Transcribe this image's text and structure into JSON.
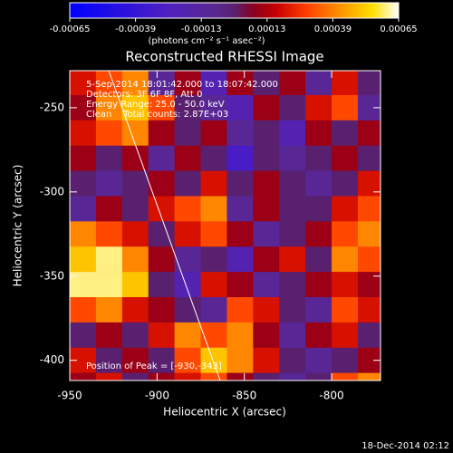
{
  "chart_data": {
    "type": "heatmap",
    "title": "Reconstructed RHESSI Image",
    "x_label": "Heliocentric X (arcsec)",
    "y_label": "Heliocentric Y (arcsec)",
    "annotations": [
      "5-Sep-2014 18:01:42.000 to 18:07:42.000",
      "Detectors: 3F 6F 8F, Att 0",
      "Energy Range: 25.0 - 50.0 keV",
      "Clean    Total counts: 2.87E+03",
      "Position of Peak = [-930,-343]"
    ],
    "footer": "18-Dec-2014 02:12",
    "colorbar": {
      "label": "(photons cm⁻² s⁻¹ asec⁻²)",
      "lim": [
        -0.00065,
        0.00065
      ],
      "ticks": [
        -0.00065,
        -0.00039,
        -0.00013,
        0.00013,
        0.00039,
        0.00065
      ]
    },
    "xlim": [
      -950,
      -772
    ],
    "ylim": [
      -412,
      -228
    ],
    "xticks": [
      -950,
      -900,
      -850,
      -800
    ],
    "yticks": [
      -250,
      -300,
      -350,
      -400
    ],
    "x": [
      -942.5,
      -927.5,
      -912.5,
      -897.5,
      -882.5,
      -867.5,
      -852.5,
      -837.5,
      -822.5,
      -807.5,
      -792.5,
      -777.5
    ],
    "y": [
      -235,
      -250,
      -265,
      -280,
      -295,
      -310,
      -325,
      -340,
      -355,
      -370,
      -385,
      -400,
      -415
    ],
    "z": [
      [
        0.0002,
        0.0003,
        0.0004,
        -0.0001,
        0.0001,
        -0.0002,
        0.0001,
        0,
        0.0001,
        -0.0001,
        0.0002,
        0
      ],
      [
        0.0001,
        0.0004,
        0.0005,
        0.0003,
        0,
        -0.0001,
        -0.0002,
        0.0001,
        0,
        0.0002,
        0.0003,
        -0.0001
      ],
      [
        0.0002,
        0.0003,
        0.0004,
        0.0001,
        0,
        0.0001,
        -0.0001,
        0,
        -0.0002,
        0.0001,
        0,
        0.0001
      ],
      [
        0.0001,
        0,
        0.0001,
        -0.0001,
        0.0001,
        0,
        -0.0003,
        0,
        -0.0001,
        0,
        0.0001,
        0
      ],
      [
        0,
        -0.0001,
        0,
        0.0001,
        0,
        0.0002,
        0,
        0.0001,
        0,
        -0.0001,
        0,
        0.0002
      ],
      [
        -0.0001,
        0.0001,
        0,
        0.0002,
        0.0003,
        0.0004,
        -0.0001,
        0.0001,
        0,
        0,
        0.0002,
        0.0003
      ],
      [
        0.0004,
        0.0003,
        0.0002,
        0,
        0.0002,
        0.0003,
        0.0001,
        -0.0001,
        0,
        0.0001,
        0.0003,
        0.0004
      ],
      [
        0.0005,
        0.0006,
        0.0004,
        0.0001,
        -0.0001,
        0,
        -0.0002,
        0.0001,
        0.0002,
        0,
        0.0004,
        0.0003
      ],
      [
        0.0006,
        0.0006,
        0.0005,
        0,
        -0.0002,
        0.0002,
        0.0001,
        -0.0001,
        0,
        0.0001,
        0.0002,
        0.0001
      ],
      [
        0.0003,
        0.0004,
        0.0002,
        0.0001,
        0,
        -0.0001,
        0.0003,
        0.0002,
        0,
        -0.0001,
        0.0003,
        0.0002
      ],
      [
        0,
        0.0001,
        0,
        0.0002,
        0.0004,
        0.0003,
        0.0004,
        0.0001,
        -0.0001,
        0.0001,
        0.0002,
        0
      ],
      [
        0.0002,
        0,
        0.0001,
        0,
        0.0003,
        0.0005,
        0.0004,
        0.0002,
        0,
        -0.0001,
        0,
        0.0001
      ],
      [
        0.0001,
        0.0002,
        0,
        0.0001,
        0.0002,
        0.0003,
        0.0001,
        0,
        -0.0001,
        0,
        0.0003,
        0.0004
      ]
    ]
  }
}
